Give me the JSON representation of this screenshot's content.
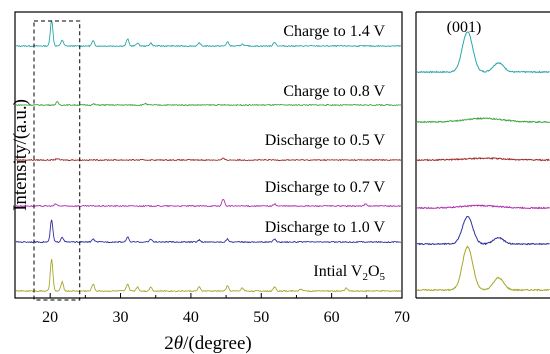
{
  "chart_data": [
    {
      "type": "line",
      "xlabel": "2θ/(degree)",
      "xlabel_theta": "θ",
      "xlabel_prefix": "2",
      "xlabel_suffix": "/(degree)",
      "ylabel": "Intensity/(a.u.)",
      "xlim": [
        15,
        70
      ],
      "xticks": [
        20,
        30,
        40,
        50,
        60,
        70
      ],
      "y_ticks_shown": false,
      "grid": false,
      "annotation_box_x": [
        17.7,
        24.2
      ],
      "series": [
        {
          "label": "Charge to 1.4 V",
          "color": "#2aa6a6",
          "peaks": [
            [
              20.2,
              26
            ],
            [
              21.7,
              6
            ],
            [
              26.1,
              5
            ],
            [
              31.0,
              7
            ],
            [
              32.4,
              3
            ],
            [
              34.3,
              3
            ],
            [
              41.2,
              3
            ],
            [
              45.2,
              4
            ],
            [
              47.3,
              2
            ],
            [
              51.9,
              4
            ]
          ]
        },
        {
          "label": "Charge to 0.8 V",
          "color": "#3fa53f",
          "peaks": [
            [
              21.0,
              3
            ],
            [
              26.2,
              1
            ],
            [
              33.5,
              1.5
            ]
          ]
        },
        {
          "label": "Discharge to 0.5 V",
          "color": "#a02828",
          "peaks": [
            [
              21.0,
              1.5
            ],
            [
              44.6,
              1.5
            ]
          ]
        },
        {
          "label": "Discharge to 0.7 V",
          "color": "#b02eb0",
          "peaks": [
            [
              20.8,
              2
            ],
            [
              44.6,
              7
            ],
            [
              51.9,
              2
            ],
            [
              64.8,
              2
            ]
          ]
        },
        {
          "label": "Discharge to 1.0 V",
          "color": "#2f2fa0",
          "peaks": [
            [
              20.2,
              22
            ],
            [
              21.7,
              5
            ],
            [
              26.1,
              3
            ],
            [
              31.0,
              5
            ],
            [
              34.3,
              3
            ],
            [
              41.2,
              2
            ],
            [
              45.2,
              3
            ],
            [
              51.9,
              3
            ]
          ]
        },
        {
          "label_parts": [
            "Intial V",
            "2",
            "O",
            "5"
          ],
          "color": "#a6a62a",
          "peaks": [
            [
              20.2,
              32
            ],
            [
              21.7,
              9
            ],
            [
              26.1,
              7
            ],
            [
              31.0,
              7
            ],
            [
              32.4,
              4
            ],
            [
              34.3,
              4
            ],
            [
              41.2,
              4
            ],
            [
              45.2,
              5
            ],
            [
              47.3,
              3
            ],
            [
              51.9,
              4
            ],
            [
              55.6,
              2
            ],
            [
              62.1,
              3
            ]
          ]
        }
      ]
    },
    {
      "type": "line",
      "annotation": "(001)",
      "xlim": [
        17.7,
        24.2
      ],
      "series": [
        {
          "color": "#2aa6a6",
          "peaks": [
            [
              20.2,
              26
            ],
            [
              21.7,
              6
            ]
          ]
        },
        {
          "color": "#3fa53f",
          "peaks": [
            [
              21.0,
              3
            ]
          ]
        },
        {
          "color": "#a02828",
          "peaks": [
            [
              21.0,
              1.5
            ]
          ]
        },
        {
          "color": "#b02eb0",
          "peaks": [
            [
              20.8,
              2
            ]
          ]
        },
        {
          "color": "#2f2fa0",
          "peaks": [
            [
              20.2,
              22
            ],
            [
              21.7,
              5
            ]
          ]
        },
        {
          "color": "#a6a62a",
          "peaks": [
            [
              20.2,
              32
            ],
            [
              21.7,
              9
            ]
          ]
        }
      ]
    }
  ]
}
